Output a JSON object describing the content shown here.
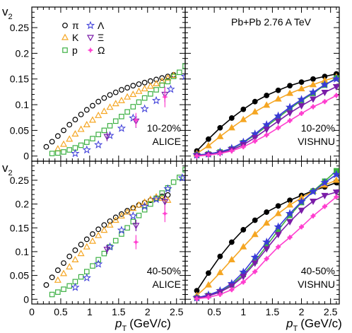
{
  "chart_data": {
    "type": "scatter",
    "ylabel": "v",
    "ylabel_sub": "2",
    "xlabel_main": "p",
    "xlabel_sub": "T",
    "xlabel_unit": "(GeV/c)",
    "x_range": [
      0,
      2.65
    ],
    "y_range": [
      -0.01,
      0.29
    ],
    "x_ticks_left": [
      "0",
      "0.5",
      "1",
      "1.5",
      "2",
      "2.5"
    ],
    "x_ticks_right": [
      "0.5",
      "1",
      "1.5",
      "2",
      "2.5"
    ],
    "y_ticks": [
      "0",
      "0.05",
      "0.1",
      "0.15",
      "0.2",
      "0.25"
    ],
    "legend": {
      "pi": "π",
      "K": "K",
      "p": "p",
      "Lambda": "Λ",
      "Xi": "Ξ",
      "Omega": "Ω"
    },
    "colors": {
      "pi": "#000000",
      "K": "#f5a623",
      "p": "#3cb043",
      "Lambda": "#3a3ad8",
      "Xi": "#7a1da8",
      "Omega": "#ff3ecf"
    },
    "system_label": "Pb+Pb 2.76 A TeV",
    "panels": [
      {
        "id": "alice-10-20",
        "centrality": "10-20%",
        "source": "ALICE",
        "style": "markers",
        "series": [
          {
            "name": "π",
            "key": "pi",
            "marker": "circle",
            "x": [
              0.25,
              0.35,
              0.45,
              0.55,
              0.65,
              0.75,
              0.85,
              0.95,
              1.05,
              1.15,
              1.25,
              1.35,
              1.45,
              1.55,
              1.65,
              1.75,
              1.85,
              1.95,
              2.05,
              2.15,
              2.25,
              2.35,
              2.45
            ],
            "y": [
              0.018,
              0.028,
              0.039,
              0.05,
              0.061,
              0.071,
              0.081,
              0.09,
              0.098,
              0.106,
              0.113,
              0.119,
              0.124,
              0.129,
              0.133,
              0.137,
              0.14,
              0.143,
              0.146,
              0.149,
              0.152,
              0.155,
              0.158
            ]
          },
          {
            "name": "K",
            "key": "K",
            "marker": "triangle-up",
            "x": [
              0.45,
              0.55,
              0.65,
              0.75,
              0.85,
              0.95,
              1.05,
              1.15,
              1.25,
              1.35,
              1.45,
              1.55,
              1.65,
              1.75,
              1.85,
              1.95,
              2.05,
              2.15,
              2.25,
              2.35,
              2.45
            ],
            "y": [
              0.014,
              0.023,
              0.033,
              0.043,
              0.052,
              0.061,
              0.07,
              0.079,
              0.087,
              0.095,
              0.102,
              0.108,
              0.115,
              0.12,
              0.126,
              0.131,
              0.136,
              0.141,
              0.146,
              0.152,
              0.157
            ]
          },
          {
            "name": "p",
            "key": "p",
            "marker": "square",
            "x": [
              0.35,
              0.45,
              0.55,
              0.65,
              0.75,
              0.85,
              0.95,
              1.05,
              1.15,
              1.25,
              1.35,
              1.45,
              1.55,
              1.65,
              1.75,
              1.85,
              1.95,
              2.05,
              2.15,
              2.25,
              2.35,
              2.45,
              2.55,
              2.65
            ],
            "y": [
              0.005,
              0.006,
              0.008,
              0.012,
              0.016,
              0.021,
              0.027,
              0.034,
              0.042,
              0.05,
              0.059,
              0.068,
              0.077,
              0.086,
              0.096,
              0.105,
              0.113,
              0.121,
              0.129,
              0.138,
              0.145,
              0.155,
              0.163,
              0.175
            ]
          },
          {
            "name": "Λ",
            "key": "Lambda",
            "marker": "star",
            "x": [
              0.75,
              0.95,
              1.15,
              1.35,
              1.55,
              1.75,
              1.95,
              2.15,
              2.4,
              2.65
            ],
            "y": [
              0.005,
              0.012,
              0.022,
              0.04,
              0.054,
              0.074,
              0.092,
              0.108,
              0.13,
              0.155
            ]
          },
          {
            "name": "Ξ",
            "key": "Xi",
            "marker": "triangle-down",
            "x": [
              1.3,
              1.8,
              2.3
            ],
            "y": [
              0.038,
              0.068,
              0.12
            ],
            "yerr": [
              0.009,
              0.013,
              0.015
            ]
          },
          {
            "name": "Ω",
            "key": "Omega",
            "marker": "cross",
            "x": [
              1.8,
              2.3
            ],
            "y": [
              0.07,
              0.115
            ],
            "yerr": [
              0.014,
              0.02
            ]
          }
        ]
      },
      {
        "id": "vishnu-10-20",
        "centrality": "10-20%",
        "source": "VISHNU",
        "style": "lines",
        "series": [
          {
            "name": "π",
            "key": "pi",
            "marker": "circle",
            "x": [
              0.2,
              0.4,
              0.6,
              0.8,
              1.0,
              1.2,
              1.4,
              1.6,
              1.8,
              2.0,
              2.2,
              2.4,
              2.6
            ],
            "y": [
              0.01,
              0.033,
              0.055,
              0.074,
              0.091,
              0.106,
              0.118,
              0.128,
              0.137,
              0.144,
              0.15,
              0.155,
              0.16
            ]
          },
          {
            "name": "K",
            "key": "K",
            "marker": "triangle-up",
            "x": [
              0.2,
              0.4,
              0.6,
              0.8,
              1.0,
              1.2,
              1.4,
              1.6,
              1.8,
              2.0,
              2.2,
              2.4,
              2.6
            ],
            "y": [
              0.005,
              0.02,
              0.038,
              0.055,
              0.071,
              0.086,
              0.099,
              0.111,
              0.122,
              0.131,
              0.139,
              0.147,
              0.154
            ]
          },
          {
            "name": "p",
            "key": "p",
            "marker": "square",
            "x": [
              0.2,
              0.4,
              0.6,
              0.8,
              1.0,
              1.2,
              1.4,
              1.6,
              1.8,
              2.0,
              2.2,
              2.4,
              2.6
            ],
            "y": [
              0.002,
              0.004,
              0.008,
              0.014,
              0.026,
              0.041,
              0.058,
              0.075,
              0.092,
              0.108,
              0.122,
              0.138,
              0.152
            ]
          },
          {
            "name": "Λ",
            "key": "Lambda",
            "marker": "star",
            "x": [
              0.2,
              0.4,
              0.6,
              0.8,
              1.0,
              1.2,
              1.4,
              1.6,
              1.8,
              2.0,
              2.2,
              2.4,
              2.6
            ],
            "y": [
              0.002,
              0.004,
              0.008,
              0.015,
              0.027,
              0.043,
              0.061,
              0.078,
              0.095,
              0.11,
              0.124,
              0.139,
              0.15
            ]
          },
          {
            "name": "Ξ",
            "key": "Xi",
            "marker": "triangle-down",
            "x": [
              0.2,
              0.4,
              0.6,
              0.8,
              1.0,
              1.2,
              1.4,
              1.6,
              1.8,
              2.0,
              2.2,
              2.4,
              2.6
            ],
            "y": [
              0.001,
              0.003,
              0.006,
              0.012,
              0.022,
              0.036,
              0.052,
              0.068,
              0.084,
              0.098,
              0.111,
              0.124,
              0.135
            ]
          },
          {
            "name": "Ω",
            "key": "Omega",
            "marker": "cross",
            "x": [
              0.2,
              0.4,
              0.6,
              0.8,
              1.0,
              1.2,
              1.4,
              1.6,
              1.8,
              2.0,
              2.2,
              2.4,
              2.6
            ],
            "y": [
              0.0,
              0.002,
              0.005,
              0.01,
              0.018,
              0.029,
              0.041,
              0.055,
              0.069,
              0.083,
              0.096,
              0.106,
              0.118
            ]
          }
        ]
      },
      {
        "id": "alice-40-50",
        "centrality": "40-50%",
        "source": "ALICE",
        "style": "markers",
        "series": [
          {
            "name": "π",
            "key": "pi",
            "marker": "circle",
            "x": [
              0.25,
              0.35,
              0.45,
              0.55,
              0.65,
              0.75,
              0.85,
              0.95,
              1.05,
              1.15,
              1.25,
              1.35,
              1.45,
              1.55,
              1.65,
              1.75,
              1.85,
              1.95,
              2.05,
              2.15,
              2.25,
              2.35
            ],
            "y": [
              0.03,
              0.046,
              0.061,
              0.076,
              0.09,
              0.103,
              0.115,
              0.126,
              0.137,
              0.147,
              0.156,
              0.164,
              0.172,
              0.179,
              0.186,
              0.192,
              0.198,
              0.203,
              0.208,
              0.212,
              0.216,
              0.219
            ]
          },
          {
            "name": "K",
            "key": "K",
            "marker": "triangle-up",
            "x": [
              0.45,
              0.55,
              0.65,
              0.75,
              0.85,
              0.95,
              1.05,
              1.15,
              1.25,
              1.35,
              1.45,
              1.55,
              1.65,
              1.75,
              1.85,
              1.95,
              2.05,
              2.15,
              2.25,
              2.35
            ],
            "y": [
              0.04,
              0.054,
              0.068,
              0.083,
              0.096,
              0.11,
              0.122,
              0.134,
              0.145,
              0.156,
              0.166,
              0.175,
              0.183,
              0.191,
              0.198,
              0.204,
              0.21,
              0.215,
              0.212,
              0.208
            ]
          },
          {
            "name": "p",
            "key": "p",
            "marker": "square",
            "x": [
              0.35,
              0.45,
              0.55,
              0.65,
              0.75,
              0.85,
              0.95,
              1.05,
              1.15,
              1.25,
              1.35,
              1.45,
              1.55,
              1.65,
              1.75,
              1.85,
              1.95,
              2.05,
              2.15,
              2.25,
              2.35,
              2.45,
              2.55,
              2.65
            ],
            "y": [
              0.01,
              0.015,
              0.021,
              0.028,
              0.037,
              0.047,
              0.058,
              0.07,
              0.083,
              0.096,
              0.11,
              0.123,
              0.137,
              0.15,
              0.163,
              0.176,
              0.188,
              0.2,
              0.212,
              0.223,
              0.234,
              0.246,
              0.256,
              0.272
            ]
          },
          {
            "name": "Λ",
            "key": "Lambda",
            "marker": "star",
            "x": [
              0.75,
              0.95,
              1.15,
              1.35,
              1.55,
              1.75,
              1.95,
              2.15,
              2.35,
              2.6
            ],
            "y": [
              0.025,
              0.045,
              0.074,
              0.11,
              0.145,
              0.175,
              0.195,
              0.21,
              0.232,
              0.255
            ]
          },
          {
            "name": "Ξ",
            "key": "Xi",
            "marker": "triangle-down",
            "x": [
              1.3,
              1.8,
              2.3
            ],
            "y": [
              0.105,
              0.155,
              0.205
            ],
            "yerr": [
              0.01,
              0.012,
              0.018
            ]
          },
          {
            "name": "Ω",
            "key": "Omega",
            "marker": "cross",
            "x": [
              1.8,
              2.3
            ],
            "y": [
              0.12,
              0.18
            ],
            "yerr": [
              0.015,
              0.018
            ]
          }
        ]
      },
      {
        "id": "vishnu-40-50",
        "centrality": "40-50%",
        "source": "VISHNU",
        "style": "lines",
        "series": [
          {
            "name": "π",
            "key": "pi",
            "marker": "circle",
            "x": [
              0.2,
              0.4,
              0.6,
              0.8,
              1.0,
              1.2,
              1.4,
              1.6,
              1.8,
              2.0,
              2.2,
              2.4,
              2.6
            ],
            "y": [
              0.018,
              0.055,
              0.09,
              0.12,
              0.146,
              0.166,
              0.183,
              0.196,
              0.208,
              0.218,
              0.228,
              0.236,
              0.245
            ]
          },
          {
            "name": "K",
            "key": "K",
            "marker": "triangle-up",
            "x": [
              0.2,
              0.4,
              0.6,
              0.8,
              1.0,
              1.2,
              1.4,
              1.6,
              1.8,
              2.0,
              2.2,
              2.4,
              2.6
            ],
            "y": [
              0.008,
              0.03,
              0.056,
              0.083,
              0.11,
              0.136,
              0.16,
              0.18,
              0.198,
              0.213,
              0.227,
              0.24,
              0.25
            ]
          },
          {
            "name": "p",
            "key": "p",
            "marker": "square",
            "x": [
              0.2,
              0.4,
              0.6,
              0.8,
              1.0,
              1.2,
              1.4,
              1.6,
              1.8,
              2.0,
              2.2,
              2.4,
              2.6
            ],
            "y": [
              0.003,
              0.008,
              0.016,
              0.03,
              0.052,
              0.08,
              0.112,
              0.145,
              0.176,
              0.203,
              0.227,
              0.248,
              0.27
            ]
          },
          {
            "name": "Λ",
            "key": "Lambda",
            "marker": "star",
            "x": [
              0.2,
              0.4,
              0.6,
              0.8,
              1.0,
              1.2,
              1.4,
              1.6,
              1.8,
              2.0,
              2.2,
              2.4,
              2.6
            ],
            "y": [
              0.003,
              0.009,
              0.018,
              0.033,
              0.057,
              0.088,
              0.12,
              0.152,
              0.18,
              0.205,
              0.226,
              0.245,
              0.262
            ]
          },
          {
            "name": "Ξ",
            "key": "Xi",
            "marker": "triangle-down",
            "x": [
              0.2,
              0.4,
              0.6,
              0.8,
              1.0,
              1.2,
              1.4,
              1.6,
              1.8,
              2.0,
              2.2,
              2.4,
              2.6
            ],
            "y": [
              0.002,
              0.007,
              0.015,
              0.028,
              0.048,
              0.076,
              0.106,
              0.136,
              0.163,
              0.187,
              0.206,
              0.218,
              0.225
            ]
          },
          {
            "name": "Ω",
            "key": "Omega",
            "marker": "cross",
            "x": [
              0.2,
              0.4,
              0.6,
              0.8,
              1.0,
              1.2,
              1.4,
              1.6,
              1.8,
              2.0,
              2.2,
              2.4,
              2.6
            ],
            "y": [
              0.001,
              0.004,
              0.01,
              0.02,
              0.036,
              0.058,
              0.085,
              0.11,
              0.13,
              0.152,
              0.175,
              0.195,
              0.215
            ]
          }
        ]
      }
    ]
  }
}
